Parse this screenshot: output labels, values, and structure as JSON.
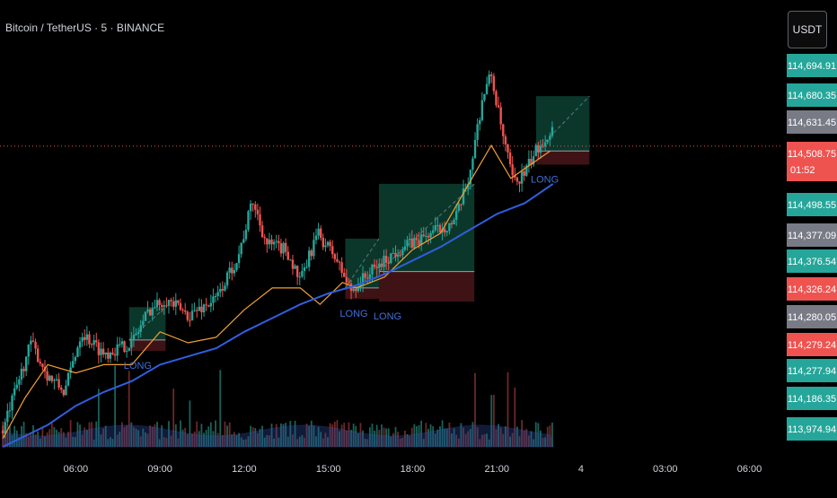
{
  "header": {
    "symbol_title": "Bitcoin / TetherUS · 5 · BINANCE",
    "currency_button": "USDT"
  },
  "colors": {
    "background": "#000000",
    "bull": "#26a69a",
    "bear": "#ef5350",
    "ema_fast": "#f0a030",
    "ema_slow": "#2f5fe0",
    "text": "#d1d4dc",
    "target_box": "#0f4a3a",
    "stop_box": "#4a1519",
    "price_line": "#ef5350"
  },
  "chart_data": {
    "type": "candlestick",
    "instrument": "Bitcoin / TetherUS",
    "timeframe": "5",
    "exchange": "BINANCE",
    "ylim": [
      113960,
      114710
    ],
    "x_tick_labels": [
      "06:00",
      "09:00",
      "12:00",
      "15:00",
      "18:00",
      "21:00",
      "4",
      "03:00",
      "06:00"
    ],
    "x_ticks_hours": [
      6,
      9,
      12,
      15,
      18,
      21,
      24,
      27,
      30
    ],
    "xlim_hours": [
      3.3,
      31.2
    ],
    "price_scale_labels": [
      {
        "value": "114,694.91",
        "role": "bull"
      },
      {
        "value": "114,680.35",
        "role": "bull"
      },
      {
        "value": "114,631.45",
        "role": "neutral"
      },
      {
        "value": "114,508.75",
        "role": "bear",
        "note": "01:52"
      },
      {
        "value": "114,498.55",
        "role": "bull"
      },
      {
        "value": "114,377.09",
        "role": "neutral"
      },
      {
        "value": "114,376.54",
        "role": "bull"
      },
      {
        "value": "114,326.24",
        "role": "bear"
      },
      {
        "value": "114,280.05",
        "role": "neutral"
      },
      {
        "value": "114,279.24",
        "role": "bear"
      },
      {
        "value": "114,277.94",
        "role": "bull"
      },
      {
        "value": "114,186.35",
        "role": "bull"
      },
      {
        "value": "113,974.94",
        "role": "bull"
      }
    ],
    "series": [
      {
        "kind": "ema_fast",
        "points": [
          [
            3.4,
            113975
          ],
          [
            4.2,
            114050
          ],
          [
            5,
            114110
          ],
          [
            6,
            114095
          ],
          [
            7,
            114110
          ],
          [
            8,
            114110
          ],
          [
            9,
            114170
          ],
          [
            10,
            114150
          ],
          [
            11,
            114160
          ],
          [
            12,
            114210
          ],
          [
            13,
            114250
          ],
          [
            14,
            114250
          ],
          [
            14.7,
            114220
          ],
          [
            15.5,
            114260
          ],
          [
            16,
            114250
          ],
          [
            17,
            114270
          ],
          [
            18,
            114320
          ],
          [
            19,
            114350
          ],
          [
            20,
            114440
          ],
          [
            20.8,
            114510
          ],
          [
            21.5,
            114450
          ],
          [
            22.2,
            114475
          ],
          [
            22.9,
            114500
          ]
        ]
      },
      {
        "kind": "ema_slow",
        "points": [
          [
            3.4,
            113960
          ],
          [
            5,
            114000
          ],
          [
            6,
            114035
          ],
          [
            7,
            114060
          ],
          [
            8,
            114080
          ],
          [
            9,
            114110
          ],
          [
            10,
            114125
          ],
          [
            11,
            114140
          ],
          [
            12,
            114170
          ],
          [
            13,
            114195
          ],
          [
            14,
            114220
          ],
          [
            15,
            114240
          ],
          [
            16,
            114255
          ],
          [
            17,
            114275
          ],
          [
            18,
            114300
          ],
          [
            19,
            114325
          ],
          [
            20,
            114355
          ],
          [
            21,
            114385
          ],
          [
            22,
            114405
          ],
          [
            23,
            114440
          ]
        ]
      }
    ],
    "trades": [
      {
        "label": "LONG",
        "x0": 7.9,
        "x1": 9.2,
        "entry": 114155,
        "target": 114215,
        "stop": 114135
      },
      {
        "label": "LONG",
        "x0": 15.6,
        "x1": 16.8,
        "entry": 114250,
        "target": 114340,
        "stop": 114230
      },
      {
        "label": "LONG",
        "x0": 16.8,
        "x1": 20.2,
        "entry": 114280,
        "target": 114440,
        "stop": 114225
      },
      {
        "label": "LONG",
        "x0": 22.4,
        "x1": 24.3,
        "entry": 114500,
        "target": 114600,
        "stop": 114475
      }
    ],
    "current_price": 114508.75,
    "countdown": "01:52",
    "grid": false,
    "legend": "none"
  }
}
